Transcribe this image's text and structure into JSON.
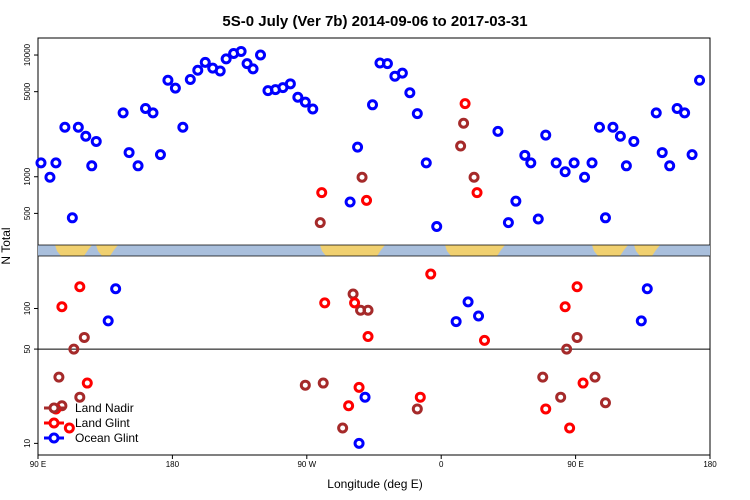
{
  "chart_data": {
    "type": "scatter",
    "title": "5S-0 July (Ver 7b)   2014-09-06 to 2017-03-31",
    "xlabel": "Longitude (deg E)",
    "ylabel": "N Total",
    "x_ticks": [
      {
        "value": 90,
        "label": "90 E"
      },
      {
        "value": 180,
        "label": "180"
      },
      {
        "value": 270,
        "label": "90 W"
      },
      {
        "value": 360,
        "label": "0"
      },
      {
        "value": 450,
        "label": "90 E"
      },
      {
        "value": 540,
        "label": "180"
      }
    ],
    "xlim": [
      90,
      540
    ],
    "y_scale": "log",
    "y_ticks_upper": [
      {
        "value": 500,
        "label": "500"
      },
      {
        "value": 1000,
        "label": "1000"
      },
      {
        "value": 5000,
        "label": "5000"
      },
      {
        "value": 10000,
        "label": "10000"
      }
    ],
    "y_ticks_lower": [
      {
        "value": 10,
        "label": "10"
      },
      {
        "value": 50,
        "label": "50"
      },
      {
        "value": 100,
        "label": "100"
      }
    ],
    "reference_line": 50,
    "series": [
      {
        "name": "Land Nadir",
        "color": "#a52a2a",
        "points": [
          [
            104,
            31
          ],
          [
            106,
            19
          ],
          [
            114,
            50
          ],
          [
            121,
            61
          ],
          [
            118,
            22
          ],
          [
            269,
            27
          ],
          [
            281,
            28
          ],
          [
            279,
            420
          ],
          [
            294,
            13
          ],
          [
            301,
            128
          ],
          [
            307,
            990
          ],
          [
            311,
            97
          ],
          [
            344,
            18
          ],
          [
            306,
            97
          ],
          [
            373,
            1790
          ],
          [
            375,
            2750
          ],
          [
            428,
            31
          ],
          [
            444,
            50
          ],
          [
            451,
            61
          ],
          [
            440,
            22
          ],
          [
            382,
            990
          ],
          [
            463,
            31
          ],
          [
            470,
            20
          ]
        ]
      },
      {
        "name": "Land Glint",
        "color": "#ff0000",
        "points": [
          [
            102,
            18
          ],
          [
            106,
            103
          ],
          [
            111,
            13
          ],
          [
            118,
            145
          ],
          [
            123,
            28
          ],
          [
            280,
            740
          ],
          [
            282,
            110
          ],
          [
            302,
            110
          ],
          [
            298,
            19
          ],
          [
            310,
            640
          ],
          [
            311,
            62
          ],
          [
            346,
            22
          ],
          [
            353,
            180
          ],
          [
            376,
            3990
          ],
          [
            384,
            740
          ],
          [
            389,
            58
          ],
          [
            443,
            103
          ],
          [
            446,
            13
          ],
          [
            451,
            145
          ],
          [
            455,
            28
          ],
          [
            430,
            18
          ],
          [
            305,
            26
          ]
        ]
      },
      {
        "name": "Ocean Glint",
        "color": "#0000ff",
        "points": [
          [
            92,
            1300
          ],
          [
            98,
            990
          ],
          [
            102,
            1300
          ],
          [
            108,
            2550
          ],
          [
            113,
            460
          ],
          [
            117,
            2550
          ],
          [
            122,
            2150
          ],
          [
            126,
            1230
          ],
          [
            129,
            1950
          ],
          [
            137,
            81
          ],
          [
            142,
            140
          ],
          [
            147,
            3350
          ],
          [
            151,
            1580
          ],
          [
            157,
            1230
          ],
          [
            162,
            3640
          ],
          [
            167,
            3350
          ],
          [
            172,
            1520
          ],
          [
            177,
            6200
          ],
          [
            182,
            5350
          ],
          [
            187,
            2550
          ],
          [
            192,
            6300
          ],
          [
            197,
            7500
          ],
          [
            202,
            8700
          ],
          [
            207,
            7800
          ],
          [
            212,
            7400
          ],
          [
            216,
            9300
          ],
          [
            221,
            10300
          ],
          [
            226,
            10700
          ],
          [
            230,
            8500
          ],
          [
            234,
            7700
          ],
          [
            239,
            10000
          ],
          [
            244,
            5100
          ],
          [
            249,
            5200
          ],
          [
            254,
            5400
          ],
          [
            259,
            5800
          ],
          [
            264,
            4500
          ],
          [
            269,
            4100
          ],
          [
            274,
            3600
          ],
          [
            299,
            620
          ],
          [
            305,
            10
          ],
          [
            309,
            22
          ],
          [
            304,
            1750
          ],
          [
            314,
            3900
          ],
          [
            319,
            8600
          ],
          [
            324,
            8500
          ],
          [
            329,
            6700
          ],
          [
            334,
            7100
          ],
          [
            339,
            4900
          ],
          [
            344,
            3300
          ],
          [
            350,
            1300
          ],
          [
            357,
            390
          ],
          [
            370,
            80
          ],
          [
            378,
            112
          ],
          [
            385,
            88
          ],
          [
            398,
            2360
          ],
          [
            405,
            420
          ],
          [
            410,
            630
          ],
          [
            416,
            1500
          ],
          [
            420,
            1300
          ],
          [
            425,
            450
          ],
          [
            430,
            2200
          ],
          [
            437,
            1300
          ],
          [
            443,
            1100
          ],
          [
            449,
            1300
          ],
          [
            456,
            990
          ],
          [
            461,
            1300
          ],
          [
            466,
            2550
          ],
          [
            470,
            460
          ],
          [
            475,
            2550
          ],
          [
            480,
            2150
          ],
          [
            484,
            1230
          ],
          [
            489,
            1950
          ],
          [
            494,
            81
          ],
          [
            498,
            140
          ],
          [
            504,
            3350
          ],
          [
            508,
            1580
          ],
          [
            513,
            1230
          ],
          [
            518,
            3640
          ],
          [
            523,
            3350
          ],
          [
            528,
            1520
          ],
          [
            533,
            6200
          ]
        ]
      }
    ],
    "legend": {
      "placement": "bottom-left",
      "entries": [
        "Land Nadir",
        "Land Glint",
        "Ocean Glint"
      ]
    }
  }
}
